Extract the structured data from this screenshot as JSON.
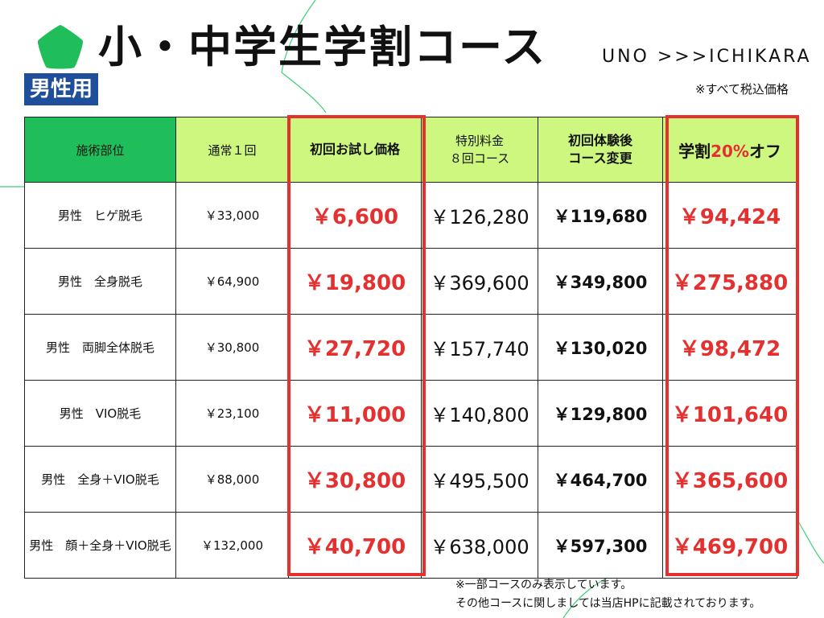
{
  "header": {
    "title": "小・中学生学割コース",
    "badge": "男性用",
    "brand": "UNO >>>ICHIKARA",
    "tax_note": "※すべて税込価格"
  },
  "colors": {
    "accent_red": "#e53030",
    "brand_green": "#1fbe5a",
    "header_lime": "#cdf77f",
    "badge_blue": "#1f4e9a"
  },
  "table": {
    "headers": {
      "part": "施術部位",
      "normal": "通常１回",
      "trial": "初回お試し価格",
      "special_1": "特別料金",
      "special_2": "８回コース",
      "change_1": "初回体験後",
      "change_2": "コース変更",
      "student_prefix": "学割",
      "student_accent": "20%",
      "student_suffix": "オフ"
    },
    "rows": [
      {
        "part": "男性　ヒゲ脱毛",
        "normal": "￥33,000",
        "trial": "￥6,600",
        "special": "￥126,280",
        "change": "￥119,680",
        "student": "￥94,424"
      },
      {
        "part": "男性　全身脱毛",
        "normal": "￥64,900",
        "trial": "￥19,800",
        "special": "￥369,600",
        "change": "￥349,800",
        "student": "￥275,880"
      },
      {
        "part": "男性　両脚全体脱毛",
        "normal": "￥30,800",
        "trial": "￥27,720",
        "special": "￥157,740",
        "change": "￥130,020",
        "student": "￥98,472"
      },
      {
        "part": "男性　VIO脱毛",
        "normal": "￥23,100",
        "trial": "￥11,000",
        "special": "￥140,800",
        "change": "￥129,800",
        "student": "￥101,640"
      },
      {
        "part": "男性　全身＋VIO脱毛",
        "normal": "￥88,000",
        "trial": "￥30,800",
        "special": "￥495,500",
        "change": "￥464,700",
        "student": "￥365,600"
      },
      {
        "part": "男性　顔＋全身＋VIO脱毛",
        "normal": "￥132,000",
        "trial": "￥40,700",
        "special": "￥638,000",
        "change": "￥597,300",
        "student": "￥469,700"
      }
    ]
  },
  "notes": {
    "line1": "※一部コースのみ表示しています。",
    "line2": "その他コースに関しましては当店HPに記載されております。"
  }
}
